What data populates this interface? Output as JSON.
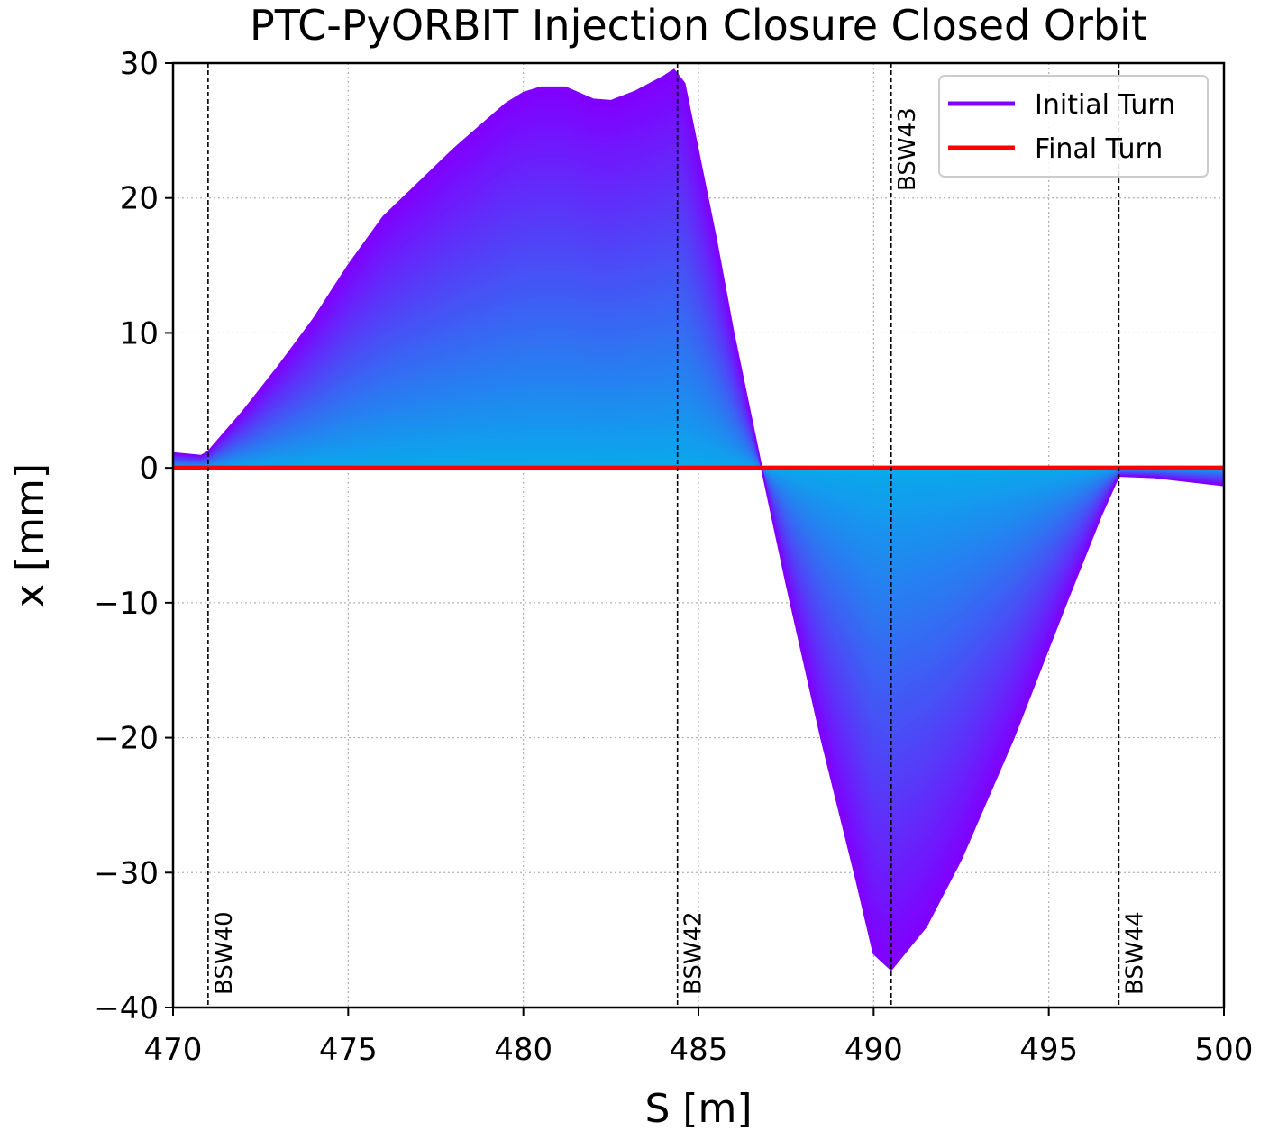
{
  "chart_data": {
    "type": "area",
    "title": "PTC-PyORBIT Injection Closure Closed Orbit",
    "xlabel": "S [m]",
    "ylabel": "x [mm]",
    "xlim": [
      470,
      500
    ],
    "ylim": [
      -40,
      30
    ],
    "xticks": [
      470,
      475,
      480,
      485,
      490,
      495,
      500
    ],
    "yticks": [
      -40,
      -30,
      -20,
      -10,
      0,
      10,
      20,
      30
    ],
    "grid": true,
    "legend_position": "top-right",
    "series": [
      {
        "name": "Initial Turn",
        "color": "#8000ff",
        "x": [
          470.0,
          470.8,
          471.0,
          472.0,
          473.0,
          474.0,
          475.0,
          476.0,
          478.0,
          479.5,
          480.0,
          480.5,
          481.2,
          482.0,
          482.5,
          483.2,
          484.0,
          484.3,
          484.6,
          485.5,
          486.0,
          486.8,
          487.5,
          488.5,
          489.5,
          490.0,
          490.5,
          491.5,
          492.5,
          494.0,
          495.5,
          496.5,
          497.0,
          498.0,
          499.0,
          500.0
        ],
        "y": [
          1.1,
          0.9,
          1.2,
          4.2,
          7.5,
          11.0,
          15.0,
          18.6,
          23.6,
          27.0,
          27.8,
          28.2,
          28.2,
          27.3,
          27.2,
          27.9,
          29.0,
          29.5,
          28.5,
          17.0,
          10.0,
          0.0,
          -8.5,
          -20.0,
          -30.5,
          -36.0,
          -37.2,
          -34.0,
          -29.0,
          -20.0,
          -10.0,
          -3.5,
          -0.6,
          -0.7,
          -1.0,
          -1.3
        ]
      },
      {
        "name": "Final Turn",
        "color": "#ff0000",
        "x": [
          470,
          500
        ],
        "y": [
          0,
          0
        ]
      }
    ],
    "fill_colormap": {
      "inner_color": "#0aa8ec",
      "outer_color": "#8000ff"
    },
    "markers": [
      {
        "label": "BSW40",
        "x": 471.0,
        "label_position": "bottom"
      },
      {
        "label": "BSW42",
        "x": 484.4,
        "label_position": "bottom"
      },
      {
        "label": "BSW43",
        "x": 490.5,
        "label_position": "top"
      },
      {
        "label": "BSW44",
        "x": 497.0,
        "label_position": "bottom"
      }
    ]
  }
}
